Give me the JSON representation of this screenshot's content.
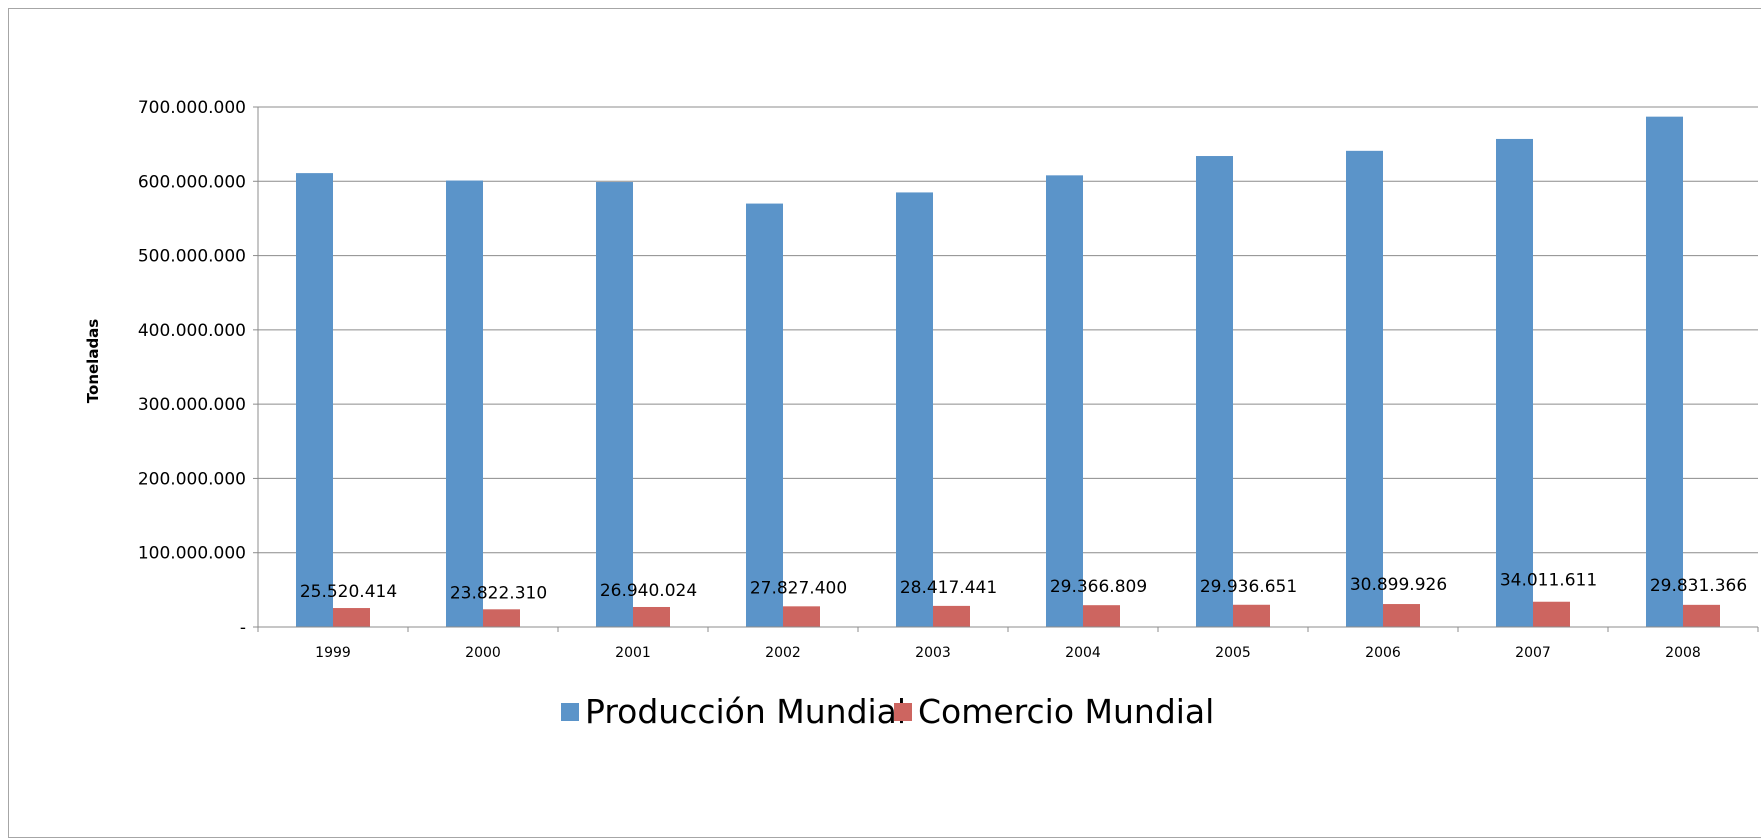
{
  "chart_data": {
    "type": "bar",
    "title": "",
    "xlabel": "",
    "ylabel": "Toneladas",
    "ylim": [
      0,
      700000000
    ],
    "yticks": [
      0,
      100000000,
      200000000,
      300000000,
      400000000,
      500000000,
      600000000,
      700000000
    ],
    "ytick_labels": [
      "-",
      "100.000.000",
      "200.000.000",
      "300.000.000",
      "400.000.000",
      "500.000.000",
      "600.000.000",
      "700.000.000"
    ],
    "categories": [
      "1999",
      "2000",
      "2001",
      "2002",
      "2003",
      "2004",
      "2005",
      "2006",
      "2007",
      "2008"
    ],
    "grid": true,
    "legend_position": "bottom",
    "series": [
      {
        "name": "Producción Mundial",
        "color": "#5b94c9",
        "values": [
          611000000,
          601000000,
          599000000,
          570000000,
          585000000,
          608000000,
          634000000,
          641000000,
          657000000,
          687000000
        ]
      },
      {
        "name": "Comercio Mundial",
        "color": "#cd6560",
        "values": [
          25520414,
          23822310,
          26940024,
          27827400,
          28417441,
          29366809,
          29936651,
          30899926,
          34011611,
          29831366
        ],
        "data_labels": [
          "25.520.414",
          "23.822.310",
          "26.940.024",
          "27.827.400",
          "28.417.441",
          "29.366.809",
          "29.936.651",
          "30.899.926",
          "34.011.611",
          "29.831.366"
        ]
      }
    ]
  }
}
